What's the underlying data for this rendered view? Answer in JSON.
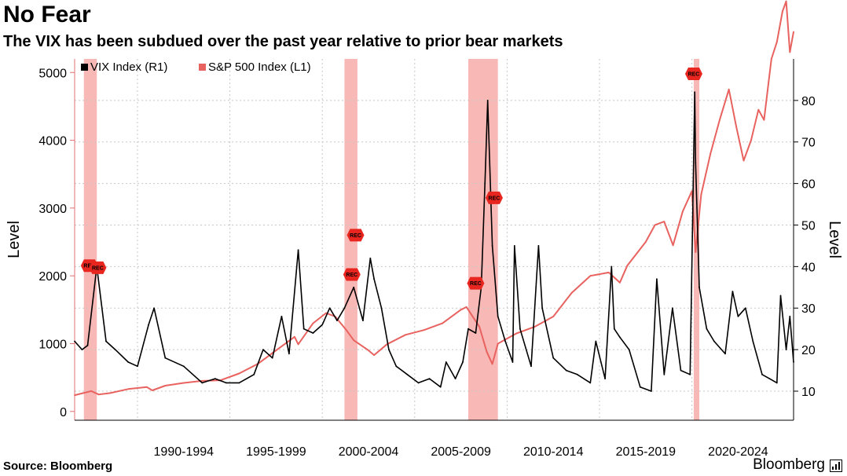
{
  "header": {
    "title": "No Fear",
    "subtitle": "The VIX has been subdued over the past year relative to prior bear markets"
  },
  "footer": {
    "source": "Source: Bloomberg",
    "brand": "Bloomberg"
  },
  "colors": {
    "vix": "#000000",
    "spx": "#e8625f",
    "recession_band": "#f6a6a3",
    "marker": "#e8261f",
    "grid": "#c8c8c8"
  },
  "chart_data": {
    "type": "line",
    "title": "No Fear",
    "subtitle": "The VIX has been subdued over the past year relative to prior bear markets",
    "x_range": [
      1986.6,
      2025.5
    ],
    "x_tick_labels": [
      {
        "label": "1990-1994",
        "center": 1992.5
      },
      {
        "label": "1995-1999",
        "center": 1997.5
      },
      {
        "label": "2000-2004",
        "center": 2002.5
      },
      {
        "label": "2005-2009",
        "center": 2007.5
      },
      {
        "label": "2010-2014",
        "center": 2012.5
      },
      {
        "label": "2015-2019",
        "center": 2017.5
      },
      {
        "label": "2020-2024",
        "center": 2022.5
      }
    ],
    "y_left": {
      "label": "Level",
      "range": [
        -130,
        5200
      ],
      "ticks": [
        0,
        1000,
        2000,
        3000,
        4000,
        5000
      ]
    },
    "y_right": {
      "label": "Level",
      "range": [
        3,
        90
      ],
      "ticks": [
        10,
        20,
        30,
        40,
        50,
        60,
        70,
        80
      ]
    },
    "legend": {
      "position": "top-left",
      "entries": [
        "VIX Index (R1)",
        "S&P 500 Index (L1)"
      ]
    },
    "grid": true,
    "recessions": [
      {
        "start": 1987.1,
        "end": 1987.8,
        "markers": [
          {
            "x": 1987.4,
            "value": 2150
          },
          {
            "x": 1987.85,
            "value": 2120
          }
        ]
      },
      {
        "start": 2001.2,
        "end": 2001.9,
        "markers": [
          {
            "x": 2001.6,
            "value": 2020
          },
          {
            "x": 2001.8,
            "value": 2600
          }
        ]
      },
      {
        "start": 2007.9,
        "end": 2009.5,
        "markers": [
          {
            "x": 2008.3,
            "value": 1890
          },
          {
            "x": 2009.3,
            "value": 3150
          }
        ]
      },
      {
        "start": 2020.1,
        "end": 2020.4,
        "markers": [
          {
            "x": 2020.1,
            "value": 4980
          }
        ]
      }
    ],
    "series": [
      {
        "name": "S&P 500 Index (L1)",
        "axis": "left",
        "x": [
          1986.6,
          1987.5,
          1987.9,
          1988.5,
          1989.5,
          1990.5,
          1990.8,
          1991.5,
          1992.5,
          1993.5,
          1994.5,
          1995.5,
          1996.5,
          1997.5,
          1998.5,
          1998.7,
          1999.5,
          2000.2,
          2000.7,
          2001.3,
          2001.7,
          2002.5,
          2002.8,
          2003.5,
          2004.5,
          2005.5,
          2006.5,
          2007.5,
          2007.8,
          2008.5,
          2008.9,
          2009.2,
          2009.5,
          2010.5,
          2011.5,
          2012.5,
          2013.5,
          2014.5,
          2015.5,
          2016.1,
          2016.5,
          2017.5,
          2018.0,
          2018.5,
          2018.98,
          2019.5,
          2020.0,
          2020.2,
          2020.5,
          2021.0,
          2021.5,
          2022.0,
          2022.4,
          2022.8,
          2023.2,
          2023.6,
          2023.9,
          2024.3,
          2024.6,
          2024.9,
          2025.1,
          2025.3,
          2025.5
        ],
        "values": [
          240,
          300,
          250,
          270,
          330,
          360,
          310,
          380,
          420,
          450,
          460,
          560,
          700,
          900,
          1100,
          990,
          1300,
          1450,
          1400,
          1200,
          1050,
          900,
          830,
          990,
          1130,
          1200,
          1300,
          1500,
          1540,
          1250,
          880,
          700,
          1000,
          1150,
          1250,
          1400,
          1750,
          2000,
          2050,
          1900,
          2150,
          2500,
          2750,
          2800,
          2450,
          2950,
          3250,
          2350,
          3200,
          3800,
          4300,
          4750,
          4200,
          3700,
          4000,
          4450,
          4300,
          5200,
          5450,
          5900,
          6050,
          5300,
          5600
        ]
      },
      {
        "name": "VIX Index (R1)",
        "axis": "right",
        "x": [
          1986.6,
          1987.0,
          1987.3,
          1987.8,
          1988.3,
          1988.8,
          1989.5,
          1990.0,
          1990.6,
          1990.9,
          1991.5,
          1992.5,
          1993.5,
          1994.2,
          1994.8,
          1995.5,
          1996.3,
          1996.8,
          1997.3,
          1997.8,
          1998.2,
          1998.7,
          1999.0,
          1999.5,
          2000.0,
          2000.4,
          2000.8,
          2001.2,
          2001.7,
          2002.2,
          2002.6,
          2002.8,
          2003.2,
          2003.6,
          2004.0,
          2004.6,
          2005.2,
          2005.8,
          2006.4,
          2006.7,
          2007.2,
          2007.6,
          2007.9,
          2008.3,
          2008.6,
          2008.8,
          2008.95,
          2009.2,
          2009.5,
          2009.9,
          2010.3,
          2010.4,
          2010.7,
          2011.3,
          2011.7,
          2011.9,
          2012.5,
          2013.2,
          2013.8,
          2014.5,
          2014.8,
          2015.3,
          2015.65,
          2015.8,
          2016.1,
          2016.6,
          2017.2,
          2017.8,
          2018.1,
          2018.5,
          2018.95,
          2019.4,
          2019.9,
          2020.15,
          2020.2,
          2020.4,
          2020.8,
          2021.2,
          2021.8,
          2022.2,
          2022.5,
          2022.9,
          2023.3,
          2023.8,
          2024.2,
          2024.6,
          2024.8,
          2025.1,
          2025.3,
          2025.5
        ],
        "values": [
          22,
          20,
          21,
          40,
          22,
          20,
          17,
          16,
          26,
          30,
          18,
          16,
          12,
          13,
          12,
          12,
          14,
          20,
          18,
          28,
          19,
          44,
          25,
          24,
          26,
          30,
          27,
          30,
          35,
          27,
          42,
          37,
          30,
          20,
          16,
          14,
          12,
          13,
          11,
          17,
          13,
          17,
          25,
          24,
          35,
          60,
          80,
          45,
          28,
          22,
          17,
          45,
          25,
          16,
          45,
          30,
          18,
          15,
          14,
          12,
          22,
          13,
          40,
          25,
          23,
          20,
          11,
          10,
          37,
          14,
          30,
          15,
          14,
          82,
          65,
          35,
          25,
          22,
          19,
          34,
          28,
          30,
          22,
          14,
          13,
          12,
          33,
          20,
          28,
          17
        ]
      }
    ]
  }
}
